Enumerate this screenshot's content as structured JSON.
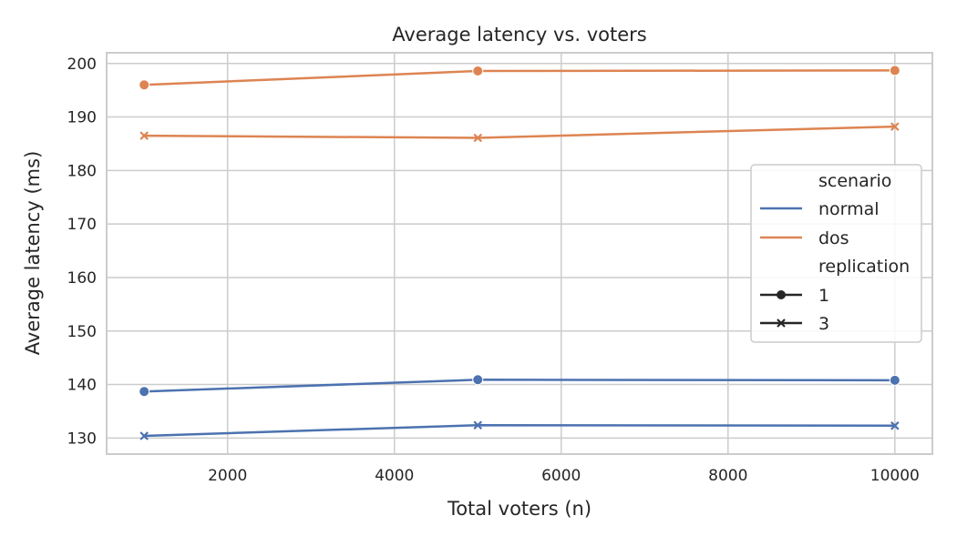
{
  "chart_data": {
    "type": "line",
    "title": "Average latency vs. voters",
    "xlabel": "Total voters (n)",
    "ylabel": "Average latency (ms)",
    "x": [
      1000,
      5000,
      10000
    ],
    "xlim": [
      550,
      10450
    ],
    "ylim": [
      127,
      202
    ],
    "xticks": [
      2000,
      4000,
      6000,
      8000,
      10000
    ],
    "yticks": [
      130,
      140,
      150,
      160,
      170,
      180,
      190,
      200
    ],
    "grid": true,
    "series": [
      {
        "scenario": "normal",
        "replication": "1",
        "marker": "circle",
        "color": "#4c72b0",
        "values": [
          138.7,
          140.9,
          140.8
        ]
      },
      {
        "scenario": "normal",
        "replication": "3",
        "marker": "x",
        "color": "#4c72b0",
        "values": [
          130.4,
          132.4,
          132.3
        ]
      },
      {
        "scenario": "dos",
        "replication": "1",
        "marker": "circle",
        "color": "#dd8452",
        "values": [
          196.0,
          198.6,
          198.7
        ]
      },
      {
        "scenario": "dos",
        "replication": "3",
        "marker": "x",
        "color": "#dd8452",
        "values": [
          186.5,
          186.1,
          188.2
        ]
      }
    ],
    "legend": {
      "placement": "center-right",
      "hue_title": "scenario",
      "hue_entries": [
        {
          "label": "normal",
          "color": "#4c72b0"
        },
        {
          "label": "dos",
          "color": "#dd8452"
        }
      ],
      "style_title": "replication",
      "style_entries": [
        {
          "label": "1",
          "marker": "circle"
        },
        {
          "label": "3",
          "marker": "x"
        }
      ]
    }
  }
}
